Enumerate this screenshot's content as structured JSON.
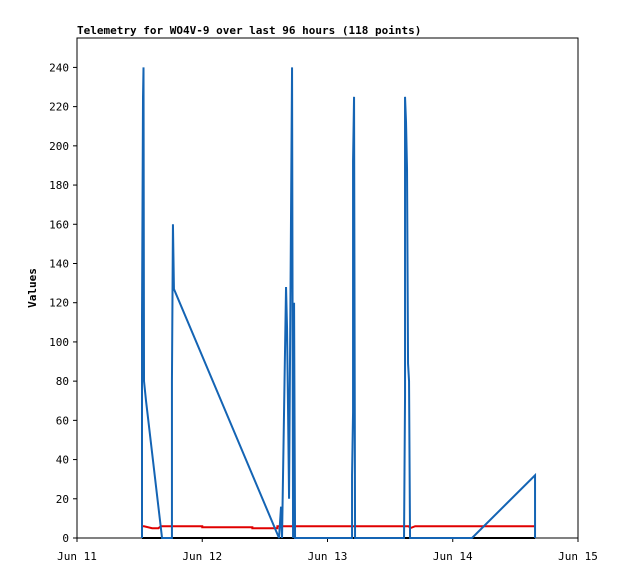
{
  "chart_data": {
    "type": "line",
    "title": "Telemetry for WO4V-9 over last 96 hours (118 points)",
    "y_label": "Values",
    "xlim": [
      11,
      15
    ],
    "xticks": [
      {
        "value": 11,
        "label": "Jun 11"
      },
      {
        "value": 12,
        "label": "Jun 12"
      },
      {
        "value": 13,
        "label": "Jun 13"
      },
      {
        "value": 14,
        "label": "Jun 14"
      },
      {
        "value": 15,
        "label": "Jun 15"
      }
    ],
    "ylim": [
      0,
      255
    ],
    "yticks": [
      0,
      20,
      40,
      60,
      80,
      100,
      120,
      140,
      160,
      180,
      200,
      220,
      240
    ],
    "grid": false,
    "series": [
      {
        "color": "#000000",
        "x": [
          11.519,
          14.657
        ],
        "values": [
          0,
          0
        ]
      },
      {
        "color": "#e00000",
        "x": [
          11.519,
          11.535,
          11.6,
          11.65,
          11.67,
          12.0,
          12.0,
          12.4,
          12.4,
          12.6,
          12.6,
          13.65,
          13.66,
          13.7,
          14.657
        ],
        "values": [
          6,
          6,
          5,
          5,
          6,
          6,
          5.5,
          5.5,
          5,
          5,
          6,
          6,
          5,
          6,
          6
        ]
      },
      {
        "color": "#1464b4",
        "x": [
          11.519,
          11.519,
          11.527,
          11.531,
          11.535,
          11.551,
          11.679,
          11.758,
          11.758,
          11.766,
          11.774,
          12.613,
          12.629,
          12.637,
          12.669,
          12.677,
          12.685,
          12.693,
          12.717,
          12.725,
          12.733,
          12.741,
          13.196,
          13.196,
          13.204,
          13.204,
          13.212,
          13.22,
          13.611,
          13.619,
          13.619,
          13.627,
          13.635,
          13.643,
          13.651,
          13.659,
          14.154,
          14.657,
          14.657
        ],
        "values": [
          0,
          112,
          225,
          240,
          80,
          70,
          0,
          0,
          80,
          160,
          127,
          0,
          16,
          0,
          128,
          107,
          65,
          20,
          240,
          0,
          120,
          0,
          0,
          32,
          64,
          192,
          225,
          0,
          0,
          72,
          225,
          212,
          188,
          89,
          80,
          0,
          0,
          32,
          0
        ]
      }
    ]
  }
}
